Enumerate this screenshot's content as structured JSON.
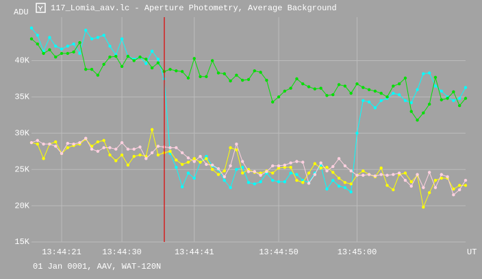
{
  "chart_data": {
    "type": "line",
    "title": "117_Lomia_aav.lc - Aperture Photometry, Average Background",
    "subtitle": "01 Jan 0001, AAV, WAT-120N",
    "y_label": "ADU",
    "x_label": "UT",
    "categories": [
      null,
      null,
      null,
      null,
      null,
      "13:44:21",
      null,
      null,
      null,
      null,
      null,
      null,
      null,
      null,
      null,
      "13:44:30",
      null,
      null,
      null,
      null,
      null,
      null,
      null,
      null,
      null,
      null,
      null,
      "13:44:41",
      null,
      null,
      null,
      null,
      null,
      null,
      null,
      null,
      null,
      null,
      null,
      null,
      null,
      "13:44:50",
      null,
      null,
      null,
      null,
      null,
      null,
      null,
      null,
      null,
      null,
      null,
      null,
      "13:45:00",
      null,
      null,
      null,
      null,
      null,
      null,
      null,
      null,
      null,
      null,
      null,
      null,
      null,
      null,
      null,
      null,
      null,
      null
    ],
    "ylim": [
      15000,
      46000
    ],
    "yticks": [
      {
        "value": 15000,
        "label": "15K"
      },
      {
        "value": 20000,
        "label": "20K"
      },
      {
        "value": 25000,
        "label": "25K"
      },
      {
        "value": 30000,
        "label": "30K"
      },
      {
        "value": 35000,
        "label": "35K"
      },
      {
        "value": 40000,
        "label": "40K"
      }
    ],
    "grid": true,
    "series": [
      {
        "color": "#00ffff",
        "values": [
          44500,
          43500,
          41300,
          43200,
          42000,
          41600,
          42000,
          42300,
          41000,
          44200,
          43000,
          43200,
          43500,
          42000,
          40800,
          43000,
          40600,
          40200,
          40500,
          39600,
          41300,
          40200,
          37500,
          27200,
          25300,
          22600,
          24500,
          23800,
          26000,
          26800,
          25500,
          25000,
          23500,
          22500,
          25000,
          25300,
          23200,
          23000,
          23300,
          24500,
          23500,
          23300,
          23300,
          24500,
          24300,
          23500,
          23200,
          24500,
          25500,
          22300,
          23500,
          22700,
          22500,
          21900,
          30000,
          34500,
          34300,
          33500,
          34500,
          34800,
          35500,
          35300,
          34500,
          34200,
          36000,
          38200,
          38300,
          36500,
          35800,
          35000,
          34500,
          34800,
          36300
        ]
      },
      {
        "color": "#00e000",
        "values": [
          43000,
          42300,
          41000,
          41500,
          40500,
          41000,
          41000,
          41200,
          42500,
          38800,
          38800,
          38000,
          39500,
          40500,
          40600,
          39200,
          40600,
          40000,
          40500,
          40200,
          39000,
          39700,
          38500,
          38800,
          38600,
          38500,
          37600,
          40300,
          37800,
          37800,
          40000,
          38300,
          38200,
          37200,
          38000,
          37300,
          37400,
          38600,
          38400,
          37300,
          34300,
          35000,
          35800,
          36200,
          37500,
          36800,
          36400,
          36100,
          36200,
          35200,
          35300,
          36700,
          36500,
          35500,
          36800,
          36300,
          36000,
          35800,
          35500,
          35000,
          36500,
          36800,
          37600,
          33000,
          31800,
          32800,
          34000,
          37700,
          34600,
          34800,
          35700,
          33800,
          34800
        ]
      },
      {
        "color": "#ffff00",
        "values": [
          28700,
          28500,
          26500,
          28500,
          28800,
          27200,
          28000,
          28300,
          28500,
          29200,
          28200,
          28800,
          29000,
          27000,
          26200,
          27000,
          25600,
          26800,
          27000,
          26800,
          30500,
          27000,
          27300,
          27500,
          26300,
          25700,
          26000,
          26500,
          26000,
          26500,
          25000,
          24300,
          24800,
          28000,
          27700,
          24500,
          25000,
          24600,
          24500,
          24800,
          24500,
          25200,
          25300,
          25300,
          23500,
          23200,
          24500,
          25800,
          25200,
          25300,
          24600,
          23800,
          23200,
          23000,
          24200,
          24800,
          24300,
          24000,
          25200,
          22800,
          22200,
          24300,
          24500,
          23300,
          24200,
          19800,
          21800,
          23500,
          23800,
          23800,
          22300,
          22800,
          22800
        ]
      },
      {
        "color": "#ffd0e0",
        "values": [
          28700,
          29000,
          28500,
          28500,
          28200,
          27200,
          28600,
          28500,
          28700,
          29300,
          27800,
          27500,
          28000,
          28000,
          27800,
          28700,
          27800,
          27800,
          28100,
          26500,
          27300,
          28200,
          28100,
          28000,
          28000,
          27300,
          26600,
          26100,
          26800,
          25700,
          25600,
          25100,
          24000,
          25500,
          28500,
          26100,
          24700,
          24700,
          24200,
          24700,
          25500,
          25500,
          25600,
          25900,
          26100,
          26000,
          23100,
          24300,
          25900,
          24800,
          25400,
          26500,
          25500,
          24800,
          24200,
          24200,
          24300,
          24100,
          24300,
          24200,
          24300,
          24500,
          23500,
          22700,
          24300,
          22500,
          24600,
          22500,
          24300,
          24000,
          21500,
          22200,
          23500
        ]
      }
    ]
  }
}
